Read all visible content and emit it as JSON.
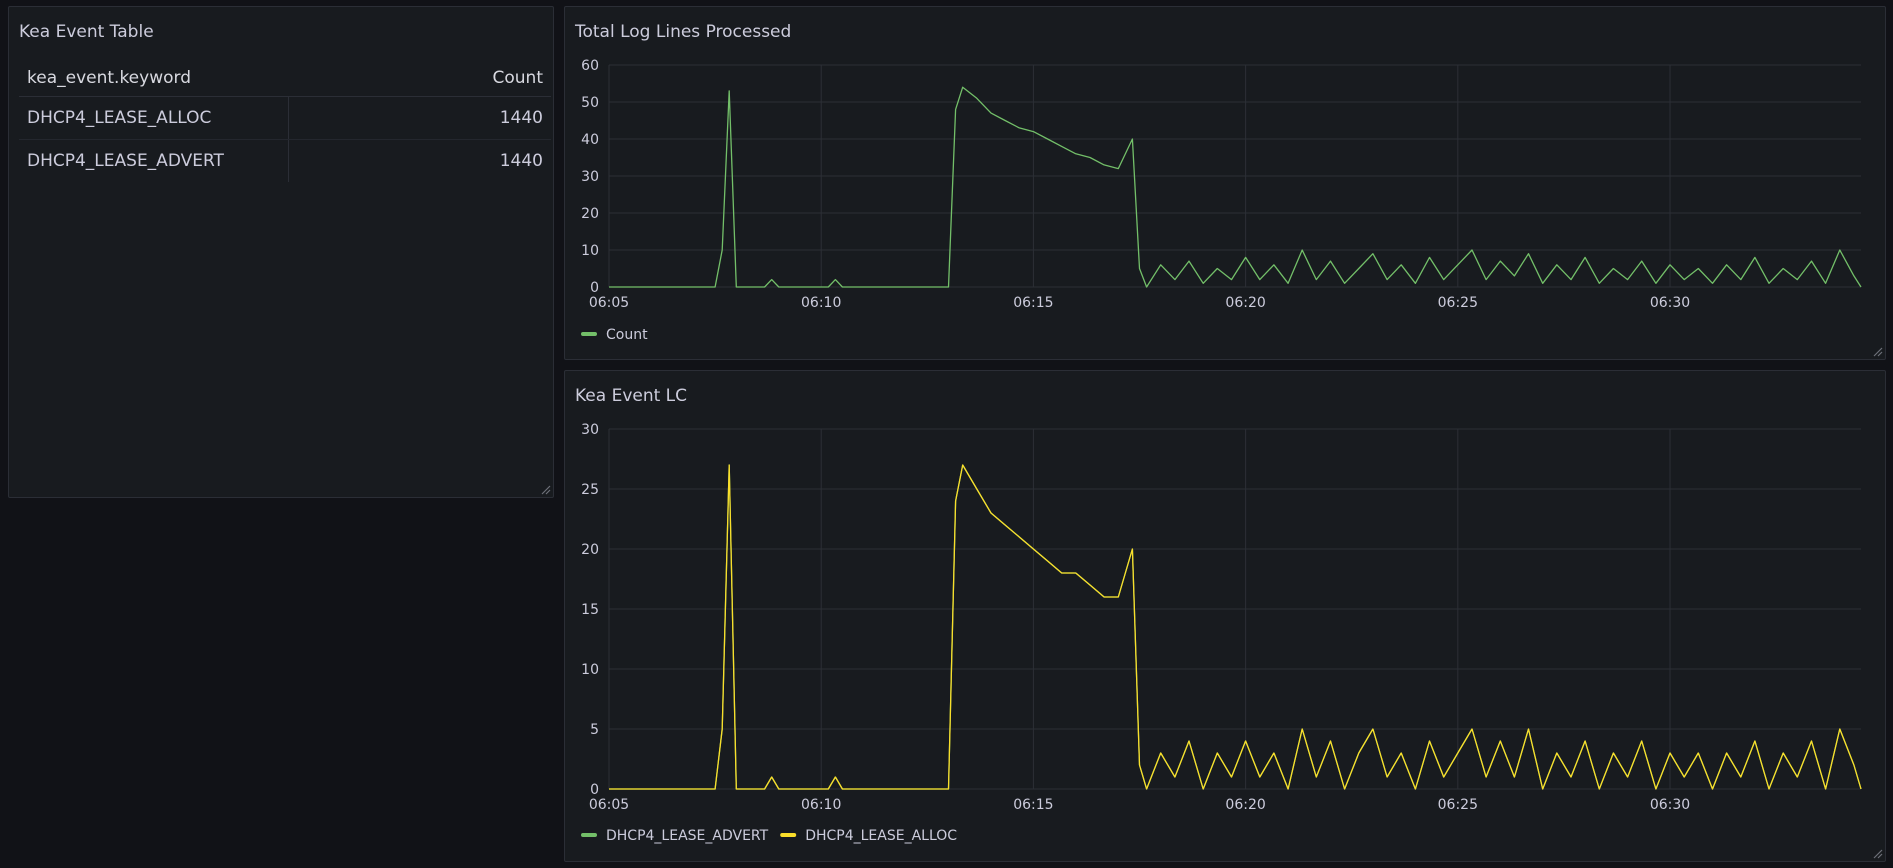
{
  "table_panel": {
    "title": "Kea Event Table",
    "columns": {
      "keyword": "kea_event.keyword",
      "count": "Count"
    },
    "rows": [
      {
        "keyword": "DHCP4_LEASE_ALLOC",
        "count": "1440"
      },
      {
        "keyword": "DHCP4_LEASE_ADVERT",
        "count": "1440"
      }
    ]
  },
  "total_panel": {
    "title": "Total Log Lines Processed",
    "legend": [
      {
        "name": "Count",
        "color": "#73bf69"
      }
    ]
  },
  "lc_panel": {
    "title": "Kea Event LC",
    "legend": [
      {
        "name": "DHCP4_LEASE_ADVERT",
        "color": "#73bf69"
      },
      {
        "name": "DHCP4_LEASE_ALLOC",
        "color": "#fade2a"
      }
    ]
  },
  "chart_data": [
    {
      "type": "line",
      "title": "Total Log Lines Processed",
      "x_ticks": [
        "06:05",
        "06:10",
        "06:15",
        "06:20",
        "06:25",
        "06:30"
      ],
      "x_range": [
        "06:05",
        "06:34:30"
      ],
      "ylim": [
        0,
        60
      ],
      "y_ticks": [
        0,
        10,
        20,
        30,
        40,
        50,
        60
      ],
      "grid": true,
      "legend_position": "bottom-left",
      "series": [
        {
          "name": "Count",
          "color": "#73bf69",
          "points": [
            [
              "06:05",
              0
            ],
            [
              "06:07:30",
              0
            ],
            [
              "06:07:40",
              10
            ],
            [
              "06:07:50",
              53
            ],
            [
              "06:08:00",
              0
            ],
            [
              "06:08:40",
              0
            ],
            [
              "06:08:50",
              2
            ],
            [
              "06:09:00",
              0
            ],
            [
              "06:10:10",
              0
            ],
            [
              "06:10:20",
              2
            ],
            [
              "06:10:30",
              0
            ],
            [
              "06:13:00",
              0
            ],
            [
              "06:13:10",
              48
            ],
            [
              "06:13:20",
              54
            ],
            [
              "06:13:40",
              51
            ],
            [
              "06:14:00",
              47
            ],
            [
              "06:14:20",
              45
            ],
            [
              "06:14:40",
              43
            ],
            [
              "06:15:00",
              42
            ],
            [
              "06:15:20",
              40
            ],
            [
              "06:15:40",
              38
            ],
            [
              "06:16:00",
              36
            ],
            [
              "06:16:20",
              35
            ],
            [
              "06:16:40",
              33
            ],
            [
              "06:17:00",
              32
            ],
            [
              "06:17:20",
              40
            ],
            [
              "06:17:30",
              5
            ],
            [
              "06:17:40",
              0
            ],
            [
              "06:18:00",
              6
            ],
            [
              "06:18:20",
              2
            ],
            [
              "06:18:40",
              7
            ],
            [
              "06:19:00",
              1
            ],
            [
              "06:19:20",
              5
            ],
            [
              "06:19:40",
              2
            ],
            [
              "06:20:00",
              8
            ],
            [
              "06:20:20",
              2
            ],
            [
              "06:20:40",
              6
            ],
            [
              "06:21:00",
              1
            ],
            [
              "06:21:20",
              10
            ],
            [
              "06:21:40",
              2
            ],
            [
              "06:22:00",
              7
            ],
            [
              "06:22:20",
              1
            ],
            [
              "06:22:40",
              5
            ],
            [
              "06:23:00",
              9
            ],
            [
              "06:23:20",
              2
            ],
            [
              "06:23:40",
              6
            ],
            [
              "06:24:00",
              1
            ],
            [
              "06:24:20",
              8
            ],
            [
              "06:24:40",
              2
            ],
            [
              "06:25:00",
              6
            ],
            [
              "06:25:20",
              10
            ],
            [
              "06:25:40",
              2
            ],
            [
              "06:26:00",
              7
            ],
            [
              "06:26:20",
              3
            ],
            [
              "06:26:40",
              9
            ],
            [
              "06:27:00",
              1
            ],
            [
              "06:27:20",
              6
            ],
            [
              "06:27:40",
              2
            ],
            [
              "06:28:00",
              8
            ],
            [
              "06:28:20",
              1
            ],
            [
              "06:28:40",
              5
            ],
            [
              "06:29:00",
              2
            ],
            [
              "06:29:20",
              7
            ],
            [
              "06:29:40",
              1
            ],
            [
              "06:30:00",
              6
            ],
            [
              "06:30:20",
              2
            ],
            [
              "06:30:40",
              5
            ],
            [
              "06:31:00",
              1
            ],
            [
              "06:31:20",
              6
            ],
            [
              "06:31:40",
              2
            ],
            [
              "06:32:00",
              8
            ],
            [
              "06:32:20",
              1
            ],
            [
              "06:32:40",
              5
            ],
            [
              "06:33:00",
              2
            ],
            [
              "06:33:20",
              7
            ],
            [
              "06:33:40",
              1
            ],
            [
              "06:34:00",
              10
            ],
            [
              "06:34:20",
              3
            ],
            [
              "06:34:30",
              0
            ]
          ]
        }
      ]
    },
    {
      "type": "line",
      "title": "Kea Event LC",
      "x_ticks": [
        "06:05",
        "06:10",
        "06:15",
        "06:20",
        "06:25",
        "06:30"
      ],
      "x_range": [
        "06:05",
        "06:34:30"
      ],
      "ylim": [
        0,
        30
      ],
      "y_ticks": [
        0,
        5,
        10,
        15,
        20,
        25,
        30
      ],
      "grid": true,
      "legend_position": "bottom-left",
      "series": [
        {
          "name": "DHCP4_LEASE_ADVERT",
          "color": "#73bf69",
          "points": [
            [
              "06:05",
              0
            ],
            [
              "06:07:30",
              0
            ],
            [
              "06:07:40",
              5
            ],
            [
              "06:07:50",
              27
            ],
            [
              "06:08:00",
              0
            ],
            [
              "06:08:40",
              0
            ],
            [
              "06:08:50",
              1
            ],
            [
              "06:09:00",
              0
            ],
            [
              "06:10:10",
              0
            ],
            [
              "06:10:20",
              1
            ],
            [
              "06:10:30",
              0
            ],
            [
              "06:13:00",
              0
            ],
            [
              "06:13:10",
              24
            ],
            [
              "06:13:20",
              27
            ],
            [
              "06:13:40",
              25
            ],
            [
              "06:14:00",
              23
            ],
            [
              "06:14:20",
              22
            ],
            [
              "06:14:40",
              21
            ],
            [
              "06:15:00",
              20
            ],
            [
              "06:15:20",
              19
            ],
            [
              "06:15:40",
              18
            ],
            [
              "06:16:00",
              18
            ],
            [
              "06:16:20",
              17
            ],
            [
              "06:16:40",
              16
            ],
            [
              "06:17:00",
              16
            ],
            [
              "06:17:20",
              20
            ],
            [
              "06:17:30",
              2
            ],
            [
              "06:17:40",
              0
            ],
            [
              "06:18:00",
              3
            ],
            [
              "06:18:20",
              1
            ],
            [
              "06:18:40",
              4
            ],
            [
              "06:19:00",
              0
            ],
            [
              "06:19:20",
              3
            ],
            [
              "06:19:40",
              1
            ],
            [
              "06:20:00",
              4
            ],
            [
              "06:20:20",
              1
            ],
            [
              "06:20:40",
              3
            ],
            [
              "06:21:00",
              0
            ],
            [
              "06:21:20",
              5
            ],
            [
              "06:21:40",
              1
            ],
            [
              "06:22:00",
              4
            ],
            [
              "06:22:20",
              0
            ],
            [
              "06:22:40",
              3
            ],
            [
              "06:23:00",
              5
            ],
            [
              "06:23:20",
              1
            ],
            [
              "06:23:40",
              3
            ],
            [
              "06:24:00",
              0
            ],
            [
              "06:24:20",
              4
            ],
            [
              "06:24:40",
              1
            ],
            [
              "06:25:00",
              3
            ],
            [
              "06:25:20",
              5
            ],
            [
              "06:25:40",
              1
            ],
            [
              "06:26:00",
              4
            ],
            [
              "06:26:20",
              1
            ],
            [
              "06:26:40",
              5
            ],
            [
              "06:27:00",
              0
            ],
            [
              "06:27:20",
              3
            ],
            [
              "06:27:40",
              1
            ],
            [
              "06:28:00",
              4
            ],
            [
              "06:28:20",
              0
            ],
            [
              "06:28:40",
              3
            ],
            [
              "06:29:00",
              1
            ],
            [
              "06:29:20",
              4
            ],
            [
              "06:29:40",
              0
            ],
            [
              "06:30:00",
              3
            ],
            [
              "06:30:20",
              1
            ],
            [
              "06:30:40",
              3
            ],
            [
              "06:31:00",
              0
            ],
            [
              "06:31:20",
              3
            ],
            [
              "06:31:40",
              1
            ],
            [
              "06:32:00",
              4
            ],
            [
              "06:32:20",
              0
            ],
            [
              "06:32:40",
              3
            ],
            [
              "06:33:00",
              1
            ],
            [
              "06:33:20",
              4
            ],
            [
              "06:33:40",
              0
            ],
            [
              "06:34:00",
              5
            ],
            [
              "06:34:20",
              2
            ],
            [
              "06:34:30",
              0
            ]
          ]
        },
        {
          "name": "DHCP4_LEASE_ALLOC",
          "color": "#fade2a",
          "points": [
            [
              "06:05",
              0
            ],
            [
              "06:07:30",
              0
            ],
            [
              "06:07:40",
              5
            ],
            [
              "06:07:50",
              27
            ],
            [
              "06:08:00",
              0
            ],
            [
              "06:08:40",
              0
            ],
            [
              "06:08:50",
              1
            ],
            [
              "06:09:00",
              0
            ],
            [
              "06:10:10",
              0
            ],
            [
              "06:10:20",
              1
            ],
            [
              "06:10:30",
              0
            ],
            [
              "06:13:00",
              0
            ],
            [
              "06:13:10",
              24
            ],
            [
              "06:13:20",
              27
            ],
            [
              "06:13:40",
              25
            ],
            [
              "06:14:00",
              23
            ],
            [
              "06:14:20",
              22
            ],
            [
              "06:14:40",
              21
            ],
            [
              "06:15:00",
              20
            ],
            [
              "06:15:20",
              19
            ],
            [
              "06:15:40",
              18
            ],
            [
              "06:16:00",
              18
            ],
            [
              "06:16:20",
              17
            ],
            [
              "06:16:40",
              16
            ],
            [
              "06:17:00",
              16
            ],
            [
              "06:17:20",
              20
            ],
            [
              "06:17:30",
              2
            ],
            [
              "06:17:40",
              0
            ],
            [
              "06:18:00",
              3
            ],
            [
              "06:18:20",
              1
            ],
            [
              "06:18:40",
              4
            ],
            [
              "06:19:00",
              0
            ],
            [
              "06:19:20",
              3
            ],
            [
              "06:19:40",
              1
            ],
            [
              "06:20:00",
              4
            ],
            [
              "06:20:20",
              1
            ],
            [
              "06:20:40",
              3
            ],
            [
              "06:21:00",
              0
            ],
            [
              "06:21:20",
              5
            ],
            [
              "06:21:40",
              1
            ],
            [
              "06:22:00",
              4
            ],
            [
              "06:22:20",
              0
            ],
            [
              "06:22:40",
              3
            ],
            [
              "06:23:00",
              5
            ],
            [
              "06:23:20",
              1
            ],
            [
              "06:23:40",
              3
            ],
            [
              "06:24:00",
              0
            ],
            [
              "06:24:20",
              4
            ],
            [
              "06:24:40",
              1
            ],
            [
              "06:25:00",
              3
            ],
            [
              "06:25:20",
              5
            ],
            [
              "06:25:40",
              1
            ],
            [
              "06:26:00",
              4
            ],
            [
              "06:26:20",
              1
            ],
            [
              "06:26:40",
              5
            ],
            [
              "06:27:00",
              0
            ],
            [
              "06:27:20",
              3
            ],
            [
              "06:27:40",
              1
            ],
            [
              "06:28:00",
              4
            ],
            [
              "06:28:20",
              0
            ],
            [
              "06:28:40",
              3
            ],
            [
              "06:29:00",
              1
            ],
            [
              "06:29:20",
              4
            ],
            [
              "06:29:40",
              0
            ],
            [
              "06:30:00",
              3
            ],
            [
              "06:30:20",
              1
            ],
            [
              "06:30:40",
              3
            ],
            [
              "06:31:00",
              0
            ],
            [
              "06:31:20",
              3
            ],
            [
              "06:31:40",
              1
            ],
            [
              "06:32:00",
              4
            ],
            [
              "06:32:20",
              0
            ],
            [
              "06:32:40",
              3
            ],
            [
              "06:33:00",
              1
            ],
            [
              "06:33:20",
              4
            ],
            [
              "06:33:40",
              0
            ],
            [
              "06:34:00",
              5
            ],
            [
              "06:34:20",
              2
            ],
            [
              "06:34:30",
              0
            ]
          ]
        }
      ]
    }
  ]
}
